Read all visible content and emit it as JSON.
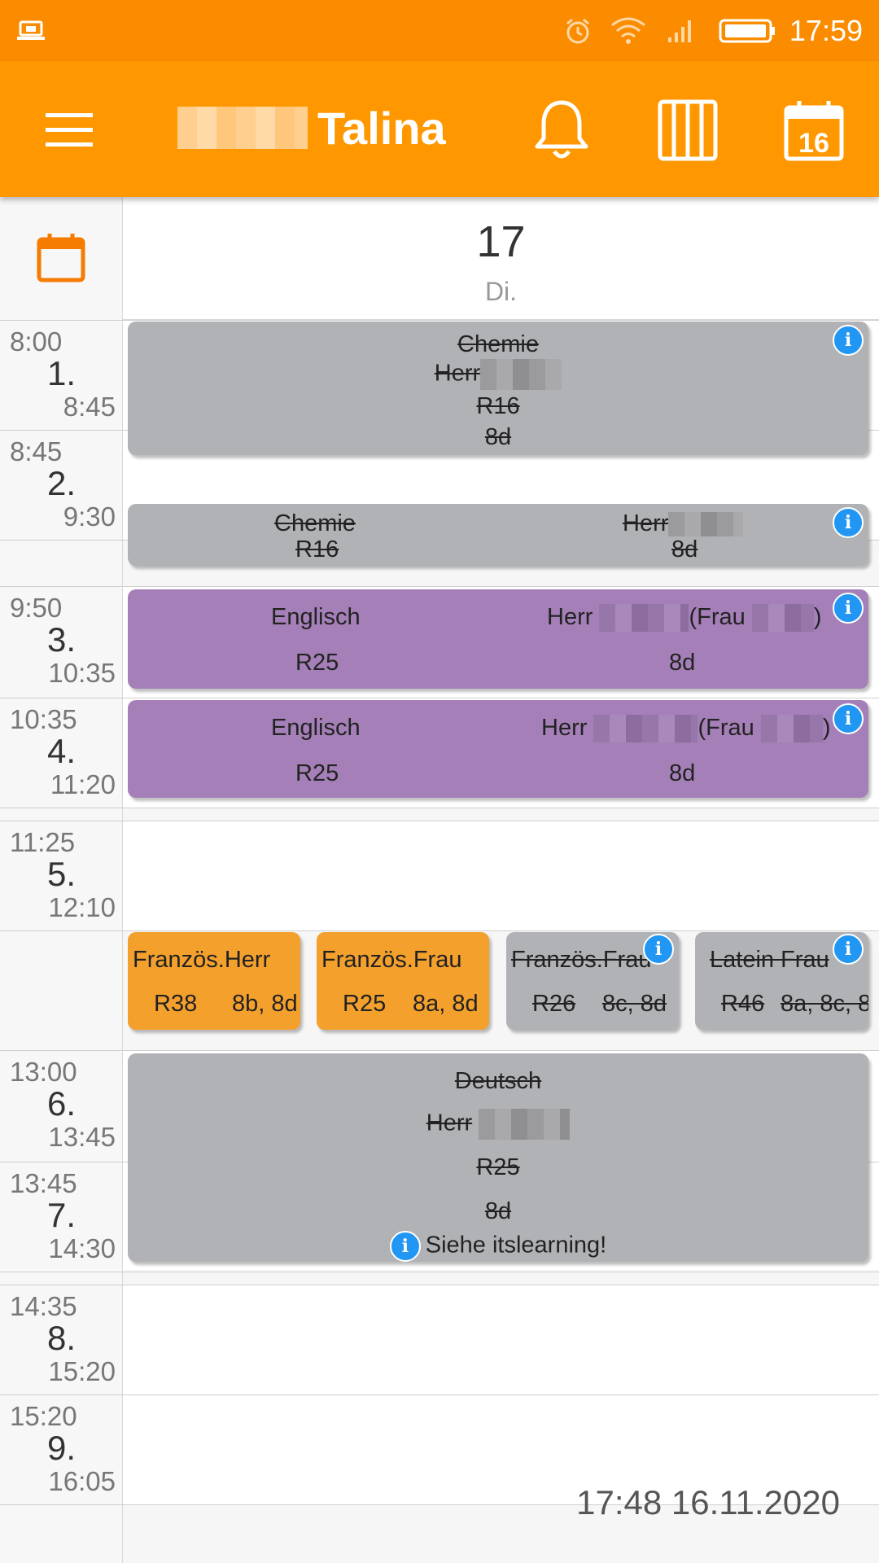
{
  "status_bar": {
    "time": "17:59"
  },
  "app_bar": {
    "title": "Talina",
    "calendar_day": "16"
  },
  "day_header": {
    "day_number": "17",
    "weekday": "Di."
  },
  "periods": [
    {
      "start": "8:00",
      "number": "1.",
      "end": "8:45"
    },
    {
      "start": "8:45",
      "number": "2.",
      "end": "9:30"
    },
    {
      "start": "9:50",
      "number": "3.",
      "end": "10:35"
    },
    {
      "start": "10:35",
      "number": "4.",
      "end": "11:20"
    },
    {
      "start": "11:25",
      "number": "5.",
      "end": "12:10"
    },
    {
      "start": "13:00",
      "number": "6.",
      "end": "13:45"
    },
    {
      "start": "13:45",
      "number": "7.",
      "end": "14:30"
    },
    {
      "start": "14:35",
      "number": "8.",
      "end": "15:20"
    },
    {
      "start": "15:20",
      "number": "9.",
      "end": "16:05"
    }
  ],
  "lessons": {
    "chemie_1": {
      "subject": "Chemie",
      "teacher": "Herr",
      "room": "R16",
      "class": "8d"
    },
    "chemie_2": {
      "subject": "Chemie",
      "room": "R16",
      "teacher": "Herr",
      "class": "8d"
    },
    "englisch_3": {
      "subject": "Englisch",
      "teacher": "Herr",
      "substitute": "(Frau",
      "close": ")",
      "room": "R25",
      "class": "8d"
    },
    "englisch_4": {
      "subject": "Englisch",
      "teacher": "Herr",
      "substitute": "(Frau",
      "close": ")",
      "room": "R25",
      "class": "8d"
    },
    "franz_a": {
      "subject": "Französ.",
      "teacher": "Herr",
      "room": "R38",
      "class": "8b, 8d"
    },
    "franz_b": {
      "subject": "Französ.",
      "teacher": "Frau",
      "room": "R25",
      "class": "8a, 8d"
    },
    "franz_c": {
      "subject": "Französ.",
      "teacher": "Frau",
      "room": "R26",
      "class": "8c, 8d"
    },
    "latein": {
      "subject": "Latein",
      "teacher": "Frau",
      "room": "R46",
      "class": "8a, 8c, 8"
    },
    "deutsch": {
      "subject": "Deutsch",
      "teacher": "Herr",
      "room": "R25",
      "class": "8d",
      "note": "Siehe itslearning!"
    }
  },
  "footer": {
    "timestamp": "17:48 16.11.2020"
  },
  "colors": {
    "status_bar": "#fb8c00",
    "app_bar": "#ff9800",
    "cancelled": "#b1b2b5",
    "regular": "#a580b8",
    "group": "#f4a02d",
    "info": "#2196f3"
  },
  "icons": [
    "laptop-icon",
    "alarm-icon",
    "wifi-icon",
    "signal-icon",
    "battery-icon",
    "menu-icon",
    "bell-icon",
    "timetable-icon",
    "calendar-icon",
    "info-icon"
  ]
}
